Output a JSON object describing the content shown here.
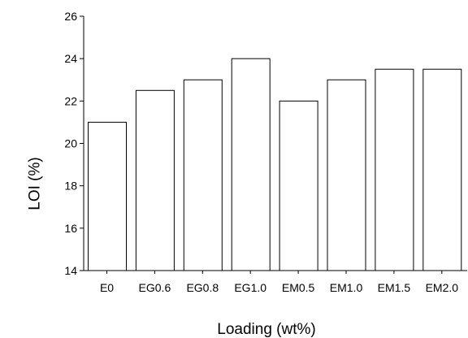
{
  "chart_data": {
    "type": "bar",
    "categories": [
      "E0",
      "EG0.6",
      "EG0.8",
      "EG1.0",
      "EM0.5",
      "EM1.0",
      "EM1.5",
      "EM2.0"
    ],
    "values": [
      21,
      22.5,
      23,
      24,
      22,
      23,
      23.5,
      23.5
    ],
    "xlabel": "Loading (wt%)",
    "ylabel": "LOI (%)",
    "ylim": [
      14,
      26
    ],
    "yticks": [
      14,
      16,
      18,
      20,
      22,
      24,
      26
    ],
    "grid": false,
    "colors": {
      "bar_fill": "#ffffff",
      "bar_stroke": "#000000",
      "axis": "#000000"
    }
  }
}
